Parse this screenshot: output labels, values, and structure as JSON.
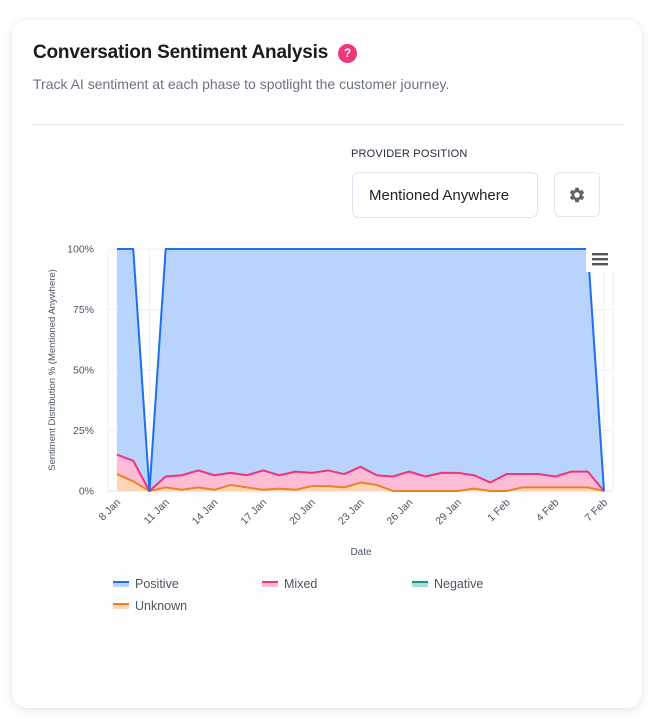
{
  "header": {
    "title": "Conversation Sentiment Analysis",
    "help_symbol": "?",
    "subtitle": "Track AI sentiment at each phase to spotlight the customer journey."
  },
  "controls": {
    "provider_position_label": "PROVIDER POSITION",
    "provider_position_value": "Mentioned Anywhere",
    "settings_icon": "gear-icon",
    "menu_icon": "hamburger-menu-icon"
  },
  "colors": {
    "help_badge": "#f0357a",
    "positive_line": "#1f6ef0",
    "positive_fill": "#b8d3fc",
    "mixed_line": "#f0337a",
    "mixed_fill": "#fdbcd6",
    "negative_line": "#14968a",
    "negative_fill": "#a7ddd6",
    "unknown_line": "#f07f2a",
    "unknown_fill": "#fed6b6"
  },
  "chart_data": {
    "type": "area",
    "stacked": "percent",
    "xlabel": "Date",
    "ylabel": "Sentiment Distribution % (Mentioned Anywhere)",
    "ylim": [
      0,
      100
    ],
    "y_ticks": [
      "0%",
      "25%",
      "50%",
      "75%",
      "100%"
    ],
    "x_ticks": [
      "8 Jan",
      "11 Jan",
      "14 Jan",
      "17 Jan",
      "20 Jan",
      "23 Jan",
      "26 Jan",
      "29 Jan",
      "1 Feb",
      "4 Feb",
      "7 Feb"
    ],
    "x": [
      "8 Jan",
      "9 Jan",
      "10 Jan",
      "11 Jan",
      "12 Jan",
      "13 Jan",
      "14 Jan",
      "15 Jan",
      "16 Jan",
      "17 Jan",
      "18 Jan",
      "19 Jan",
      "20 Jan",
      "21 Jan",
      "22 Jan",
      "23 Jan",
      "24 Jan",
      "25 Jan",
      "26 Jan",
      "27 Jan",
      "28 Jan",
      "29 Jan",
      "30 Jan",
      "31 Jan",
      "1 Feb",
      "2 Feb",
      "3 Feb",
      "4 Feb",
      "5 Feb",
      "6 Feb",
      "7 Feb"
    ],
    "grid": true,
    "legend_position": "bottom-left",
    "series": [
      {
        "name": "Positive",
        "values": [
          85,
          87.5,
          0,
          94,
          93.5,
          91.5,
          93.5,
          92.5,
          93.5,
          91.5,
          93.5,
          92,
          92.5,
          91.5,
          93,
          90,
          93.5,
          94,
          92,
          94,
          92.5,
          92.5,
          93.5,
          96.5,
          93,
          93,
          93,
          94,
          92,
          92,
          0
        ]
      },
      {
        "name": "Mixed",
        "values": [
          8,
          8.5,
          0,
          4.5,
          6,
          7,
          6,
          5,
          5,
          8,
          5.5,
          7.5,
          5.5,
          6.5,
          5.5,
          6.5,
          4,
          6,
          8,
          6,
          7.5,
          7.5,
          5.5,
          3.5,
          7,
          5.5,
          5.5,
          4.5,
          6.5,
          6.5,
          0
        ]
      },
      {
        "name": "Negative",
        "values": [
          0,
          0,
          0,
          0,
          0,
          0,
          0,
          0,
          0,
          0,
          0,
          0,
          0,
          0,
          0,
          0,
          0,
          0,
          0,
          0,
          0,
          0,
          0,
          0,
          0,
          0,
          0,
          0,
          0,
          0,
          0
        ]
      },
      {
        "name": "Unknown",
        "values": [
          7,
          4,
          0,
          1.5,
          0.5,
          1.5,
          0.5,
          2.5,
          1.5,
          0.5,
          1,
          0.5,
          2,
          2,
          1.5,
          3.5,
          2.5,
          0,
          0,
          0,
          0,
          0,
          1,
          0,
          0,
          1.5,
          1.5,
          1.5,
          1.5,
          1.5,
          0
        ]
      }
    ]
  },
  "legend": {
    "items": [
      "Positive",
      "Mixed",
      "Negative",
      "Unknown"
    ]
  }
}
